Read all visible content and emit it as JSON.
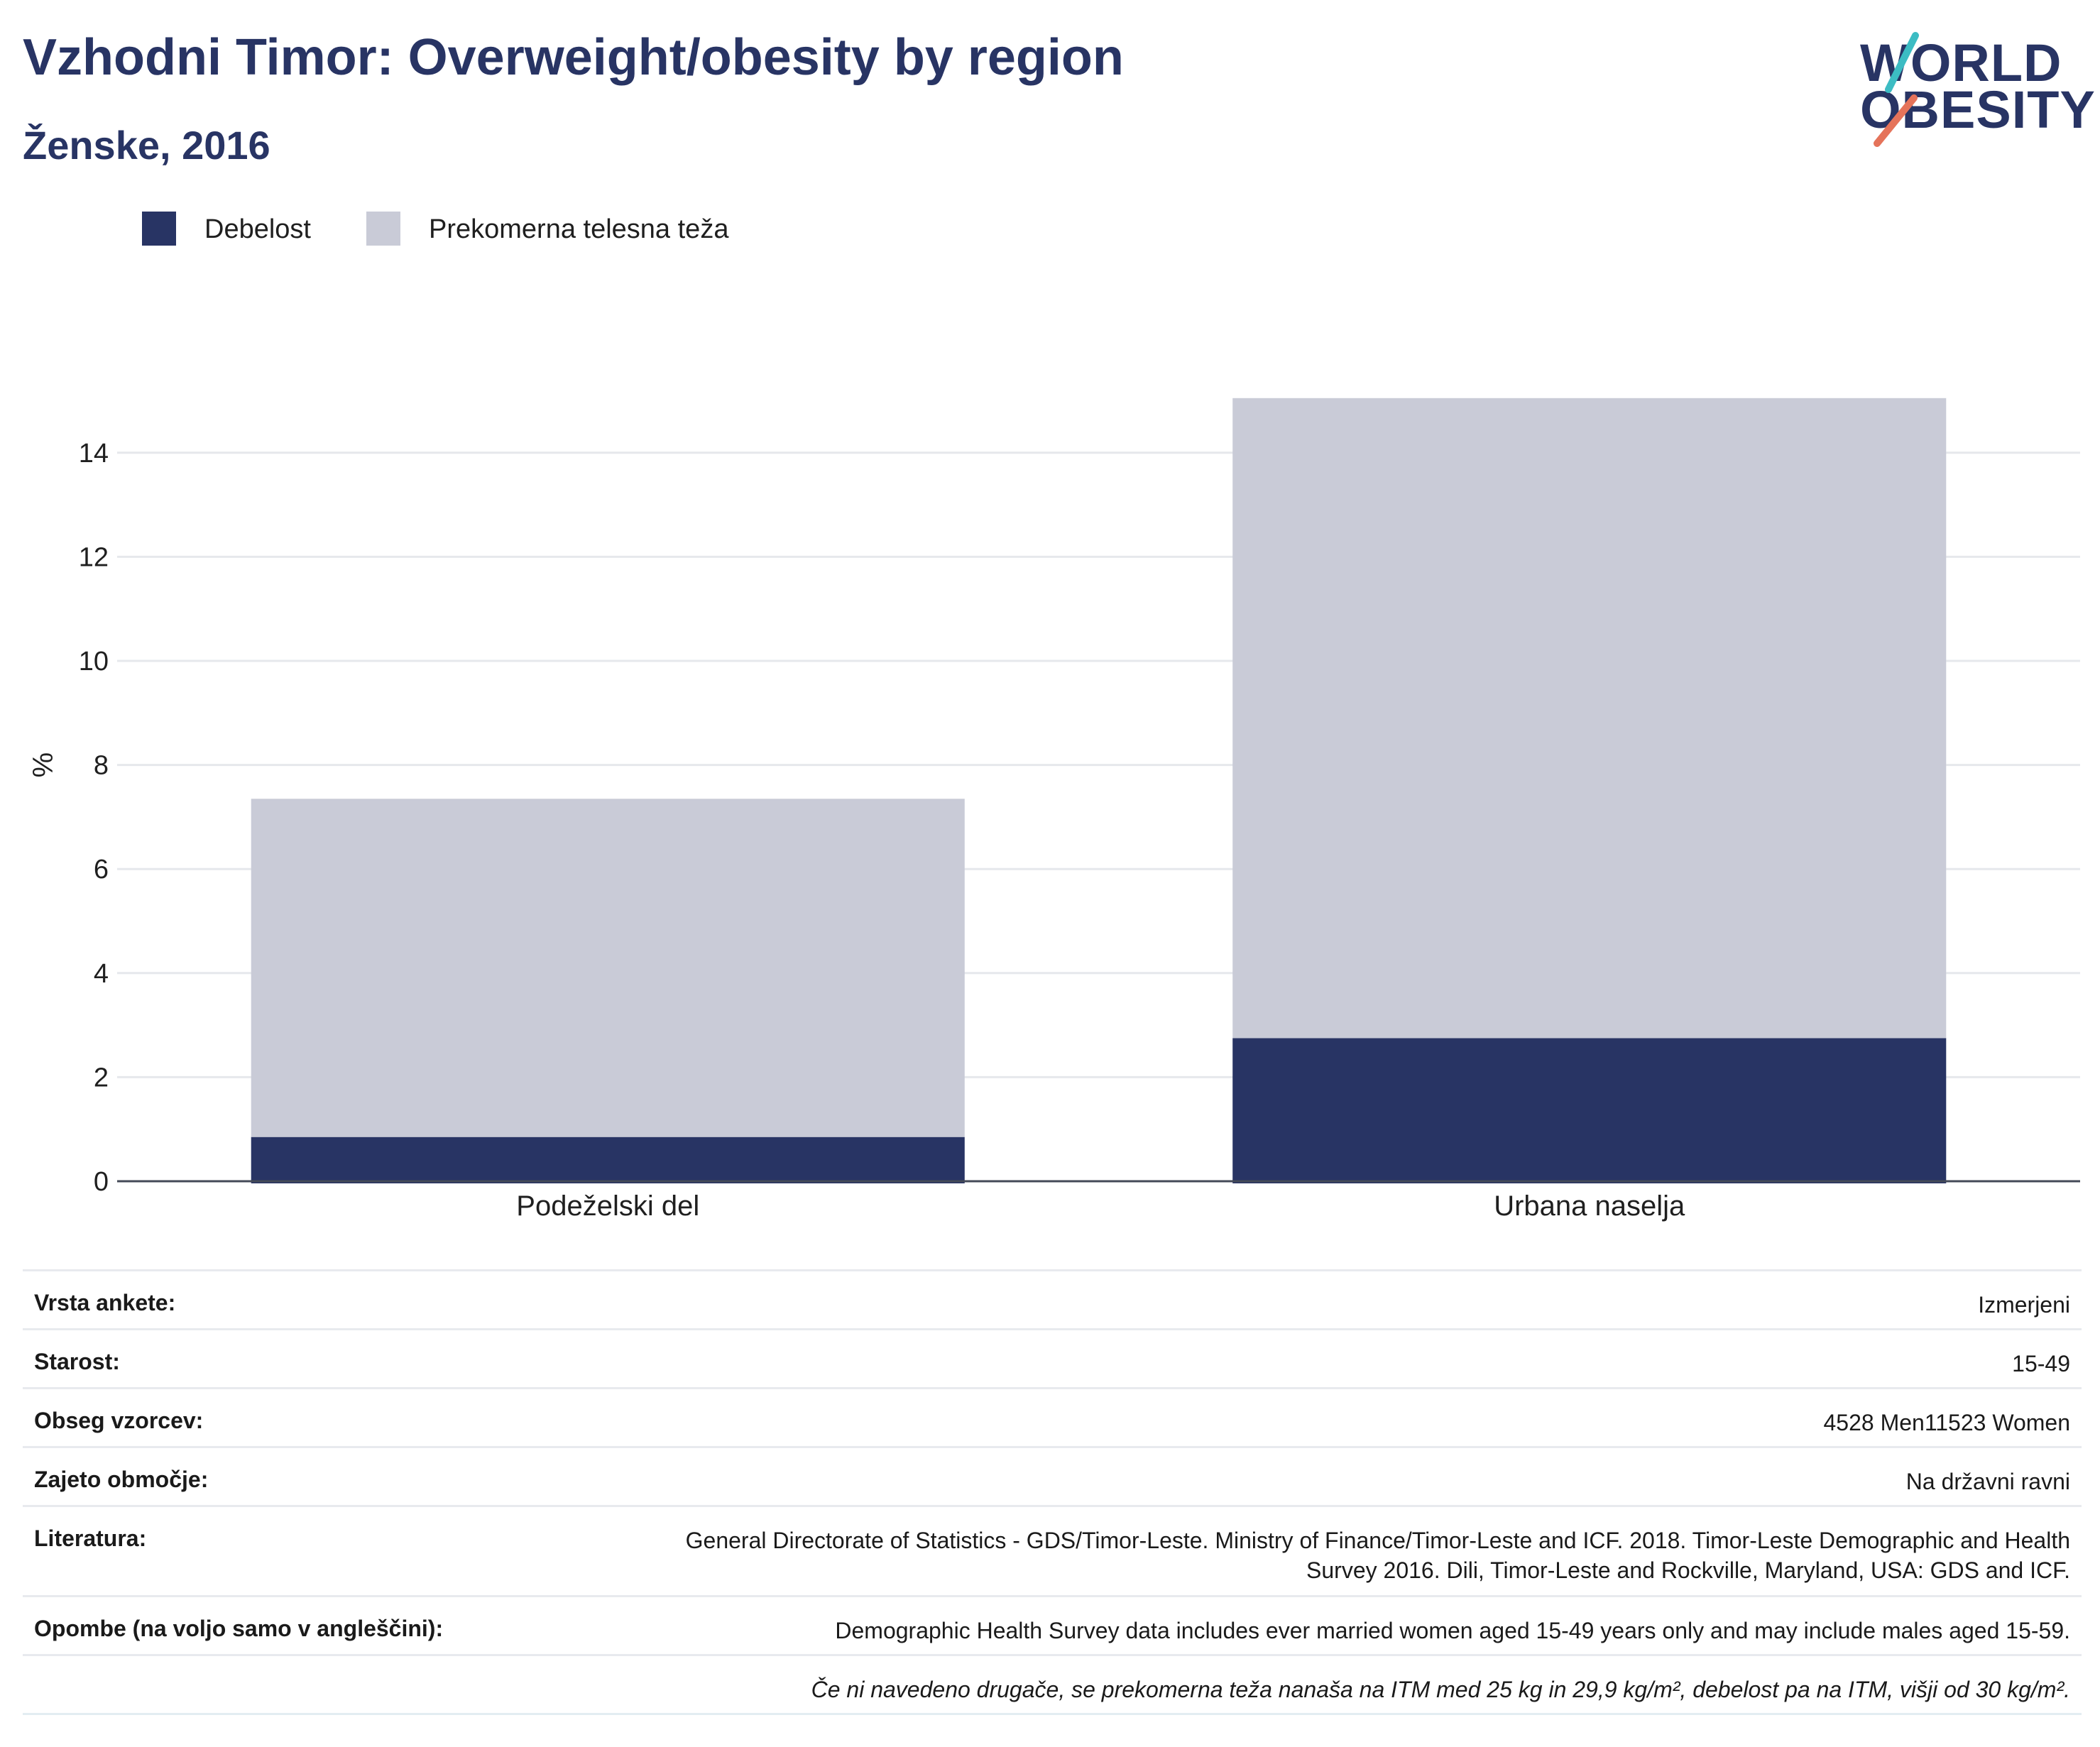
{
  "header": {
    "title": "Vzhodni Timor: Overweight/obesity by region",
    "subtitle": "Ženske, 2016"
  },
  "logo": {
    "line1": "WORLD",
    "line2": "OBESITY"
  },
  "legend": [
    {
      "label": "Debelost",
      "color": "#283464"
    },
    {
      "label": "Prekomerna telesna teža",
      "color": "#c9cbd7"
    }
  ],
  "chart_data": {
    "type": "bar",
    "stacked": true,
    "categories": [
      "Podeželski del",
      "Urbana naselja"
    ],
    "series": [
      {
        "name": "Debelost",
        "values": [
          0.85,
          2.75
        ],
        "color": "#283464"
      },
      {
        "name": "Prekomerna telesna teža",
        "values": [
          6.5,
          12.3
        ],
        "color": "#c9cbd7"
      }
    ],
    "ylabel": "%",
    "ylim": [
      0,
      15.5
    ],
    "yticks": [
      0,
      2,
      4,
      6,
      8,
      10,
      12,
      14
    ],
    "grid": true,
    "legend_position": "top-left"
  },
  "info": [
    {
      "label": "Vrsta ankete:",
      "value": "Izmerjeni"
    },
    {
      "label": "Starost:",
      "value": "15-49"
    },
    {
      "label": "Obseg vzorcev:",
      "value": "4528 Men11523 Women"
    },
    {
      "label": "Zajeto območje:",
      "value": "Na državni ravni"
    },
    {
      "label": "Literatura:",
      "value": "General Directorate of Statistics - GDS/Timor-Leste. Ministry of Finance/Timor-Leste and ICF. 2018. Timor-Leste Demographic and Health Survey 2016. Dili, Timor-Leste and Rockville, Maryland, USA: GDS and ICF."
    },
    {
      "label": "Opombe (na voljo samo v angleščini):",
      "value": "Demographic Health Survey data includes ever married women aged 15-49 years only and may include males aged 15-59."
    },
    {
      "label": "",
      "value": "Če ni navedeno drugače, se prekomerna teža nanaša na ITM med 25 kg in 29,9 kg/m², debelost pa na ITM, višji od 30 kg/m²."
    }
  ]
}
